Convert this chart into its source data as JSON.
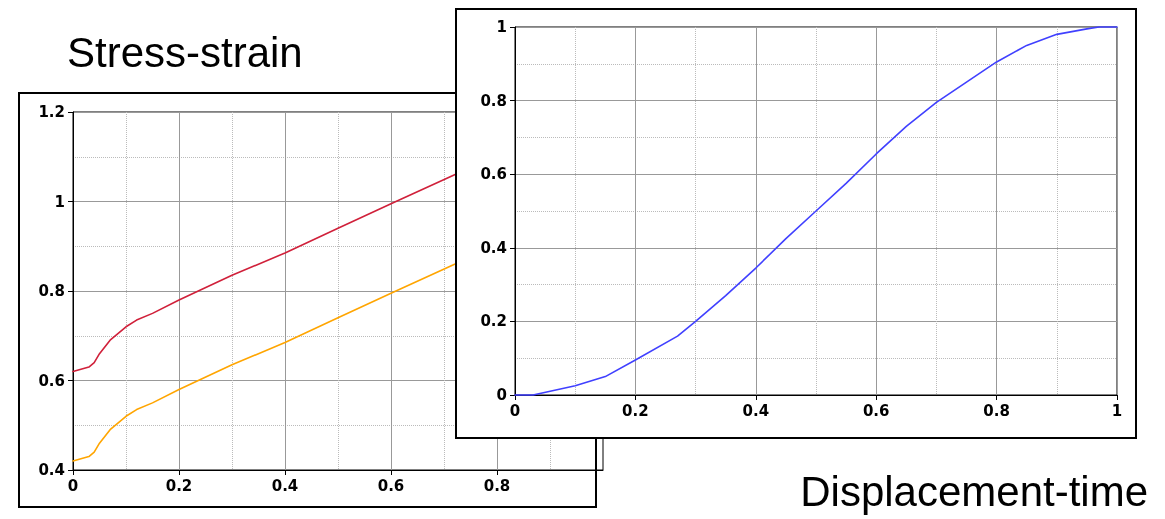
{
  "chart_data": [
    {
      "type": "line",
      "title": "Stress-strain",
      "grid": true,
      "xlim": [
        0,
        1
      ],
      "xticks": [
        0,
        0.2,
        0.4,
        0.6,
        0.8
      ],
      "ylim": [
        0.4,
        1.2
      ],
      "yticks": [
        0.4,
        0.6,
        0.8,
        1,
        1.2
      ],
      "marker": "none",
      "line_style": "solid",
      "series": [
        {
          "color": "#d0203a",
          "x": [
            0,
            0.03,
            0.04,
            0.05,
            0.07,
            0.1,
            0.12,
            0.15,
            0.2,
            0.3,
            0.4,
            0.5,
            0.6,
            0.72
          ],
          "values": [
            0.62,
            0.63,
            0.64,
            0.66,
            0.69,
            0.72,
            0.735,
            0.75,
            0.78,
            0.835,
            0.885,
            0.94,
            0.995,
            1.06
          ]
        },
        {
          "color": "#ffa500",
          "x": [
            0,
            0.03,
            0.04,
            0.05,
            0.07,
            0.1,
            0.12,
            0.15,
            0.2,
            0.3,
            0.4,
            0.5,
            0.6,
            0.72
          ],
          "values": [
            0.42,
            0.43,
            0.44,
            0.46,
            0.49,
            0.52,
            0.535,
            0.55,
            0.58,
            0.635,
            0.685,
            0.74,
            0.795,
            0.86
          ]
        }
      ]
    },
    {
      "type": "line",
      "title": "Displacement-time",
      "grid": true,
      "xlim": [
        0,
        1
      ],
      "xticks": [
        0,
        0.2,
        0.4,
        0.6,
        0.8,
        1
      ],
      "ylim": [
        0,
        1
      ],
      "yticks": [
        0,
        0.2,
        0.4,
        0.6,
        0.8,
        1
      ],
      "marker": "none",
      "line_style": "solid",
      "series": [
        {
          "color": "#4040ff",
          "x": [
            0,
            0.03,
            0.1,
            0.15,
            0.2,
            0.27,
            0.3,
            0.35,
            0.4,
            0.45,
            0.5,
            0.55,
            0.6,
            0.65,
            0.7,
            0.75,
            0.8,
            0.85,
            0.9,
            0.95,
            0.97,
            1
          ],
          "values": [
            0,
            0,
            0.025,
            0.05,
            0.095,
            0.16,
            0.2,
            0.27,
            0.345,
            0.425,
            0.5,
            0.575,
            0.655,
            0.73,
            0.795,
            0.85,
            0.905,
            0.95,
            0.98,
            0.995,
            1,
            1
          ]
        }
      ]
    }
  ]
}
